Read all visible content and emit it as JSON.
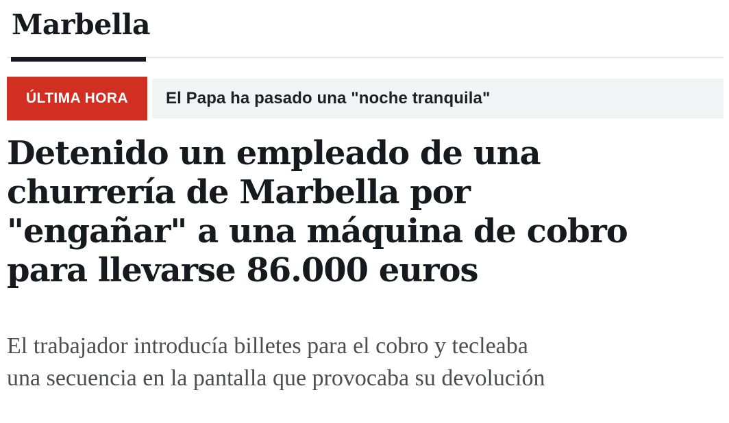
{
  "section": {
    "title": "Marbella"
  },
  "breaking": {
    "badge_label": "ÚLTIMA HORA",
    "headline": "El Papa ha pasado una \"noche tranquila\"",
    "badge_color": "#d02f22",
    "strip_bg": "#f2f3f5"
  },
  "article": {
    "headline": "Detenido un empleado de una\nchurrería de Marbella por\n\"engañar\" a una máquina de cobro\npara llevarse 86.000 euros",
    "subheadline": "El trabajador introducía billetes para el cobro y tecleaba\nuna secuencia en la pantalla que provocaba su devolución"
  },
  "colors": {
    "headline_text": "#16191d",
    "subheadline_text": "#4c4e53",
    "divider_light": "#e8e9eb",
    "divider_dark": "#16191d"
  }
}
